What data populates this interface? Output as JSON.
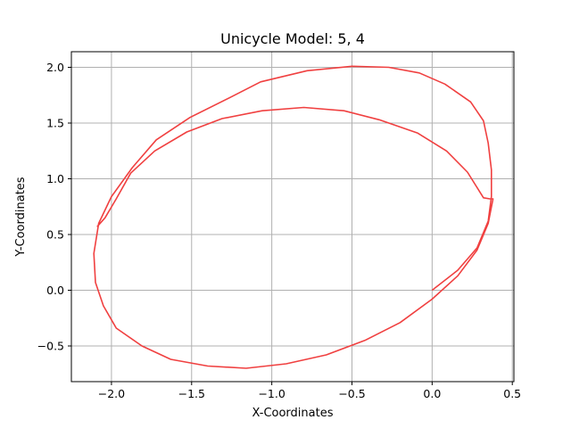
{
  "chart_data": {
    "type": "line",
    "title": "Unicycle Model: 5, 4",
    "xlabel": "X-Coordinates",
    "ylabel": "Y-Coordinates",
    "xlim": [
      -2.25,
      0.51
    ],
    "ylim": [
      -0.82,
      2.14
    ],
    "xticks": [
      -2.0,
      -1.5,
      -1.0,
      -0.5,
      0.0,
      0.5
    ],
    "xtick_labels": [
      "−2.0",
      "−1.5",
      "−1.0",
      "−0.5",
      "0.0",
      "0.5"
    ],
    "yticks": [
      -0.5,
      0.0,
      0.5,
      1.0,
      1.5,
      2.0
    ],
    "ytick_labels": [
      "−0.5",
      "0.0",
      "0.5",
      "1.0",
      "1.5",
      "2.0"
    ],
    "grid": true,
    "line_color": "#f04040",
    "series": [
      {
        "x": [
          0.0,
          0.16,
          0.28,
          0.35,
          0.37,
          0.37,
          0.35,
          0.32,
          0.24,
          0.08,
          -0.08,
          -0.27,
          -0.5,
          -0.78,
          -1.07,
          -1.26,
          -1.51,
          -1.72,
          -1.87,
          -2.0,
          -2.08,
          -2.11,
          -2.1,
          -2.05,
          -1.97,
          -1.81,
          -1.63,
          -1.4,
          -1.16,
          -0.91,
          -0.66,
          -0.42,
          -0.2,
          0.0,
          0.16,
          0.28,
          0.35,
          0.38,
          0.36,
          0.32,
          0.22,
          0.09,
          -0.09,
          -0.33,
          -0.55,
          -0.8,
          -1.06,
          -1.31,
          -1.53,
          -1.73,
          -1.88,
          -1.97,
          -2.04,
          -2.09
        ],
        "y": [
          0.0,
          0.18,
          0.38,
          0.62,
          0.84,
          1.08,
          1.32,
          1.52,
          1.69,
          1.85,
          1.95,
          2.0,
          2.01,
          1.97,
          1.87,
          1.73,
          1.55,
          1.35,
          1.1,
          0.84,
          0.6,
          0.33,
          0.07,
          -0.14,
          -0.34,
          -0.5,
          -0.62,
          -0.68,
          -0.7,
          -0.66,
          -0.58,
          -0.45,
          -0.29,
          -0.08,
          0.13,
          0.36,
          0.6,
          0.82,
          0.82,
          0.83,
          1.06,
          1.25,
          1.41,
          1.53,
          1.61,
          1.64,
          1.61,
          1.54,
          1.42,
          1.25,
          1.05,
          0.82,
          0.65,
          0.57
        ]
      }
    ]
  }
}
